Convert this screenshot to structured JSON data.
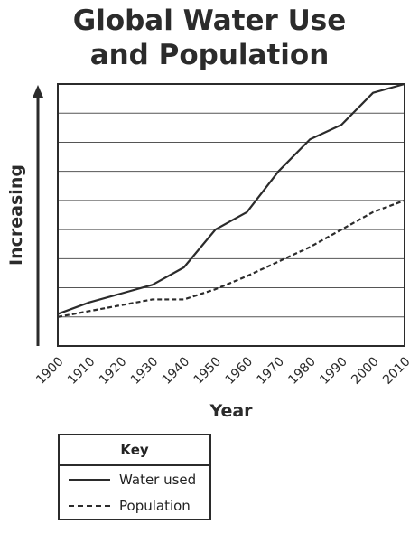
{
  "chart_data": {
    "type": "line",
    "title": "Global Water Use and Population",
    "title_lines": [
      "Global Water Use",
      "and Population"
    ],
    "xlabel": "Year",
    "ylabel": "Increasing",
    "x": [
      "1900",
      "1910",
      "1920",
      "1930",
      "1940",
      "1950",
      "1960",
      "1970",
      "1980",
      "1990",
      "2000",
      "2010"
    ],
    "ylim": [
      0,
      9
    ],
    "grid": true,
    "legend_title": "Key",
    "legend_position": "bottom-left",
    "series": [
      {
        "name": "Water used",
        "style": "solid",
        "values": [
          1.1,
          1.5,
          1.8,
          2.1,
          2.7,
          4.0,
          4.6,
          6.0,
          7.1,
          7.6,
          8.7,
          9.0
        ]
      },
      {
        "name": "Population",
        "style": "dashed",
        "values": [
          1.0,
          1.2,
          1.4,
          1.6,
          1.6,
          1.95,
          2.4,
          2.9,
          3.4,
          4.0,
          4.6,
          5.0
        ]
      }
    ]
  }
}
